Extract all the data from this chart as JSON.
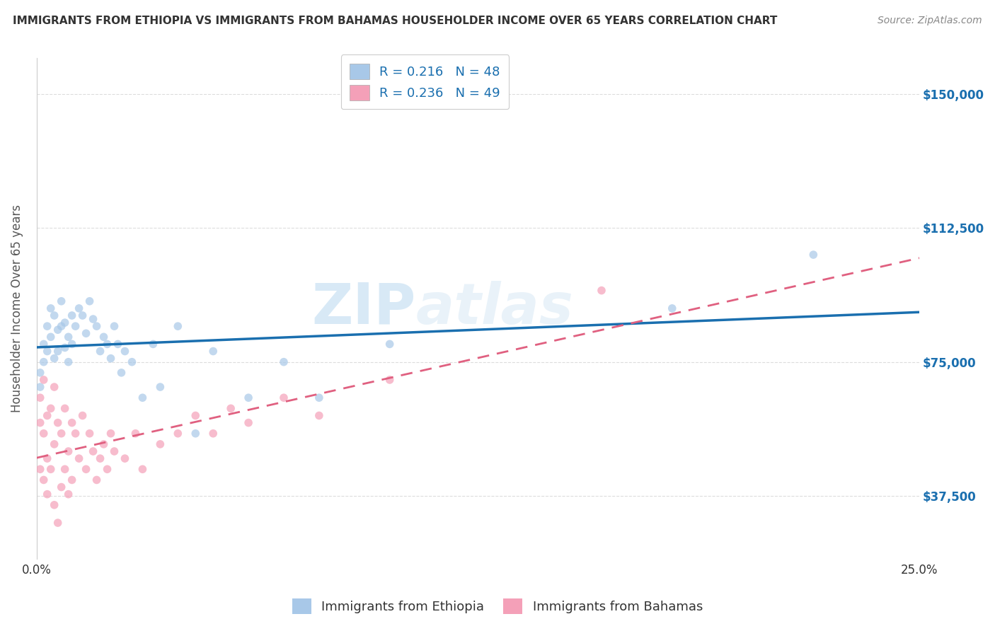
{
  "title": "IMMIGRANTS FROM ETHIOPIA VS IMMIGRANTS FROM BAHAMAS HOUSEHOLDER INCOME OVER 65 YEARS CORRELATION CHART",
  "source": "Source: ZipAtlas.com",
  "ylabel": "Householder Income Over 65 years",
  "xlim": [
    0.0,
    0.25
  ],
  "ylim": [
    20000,
    160000
  ],
  "yticks": [
    37500,
    75000,
    112500,
    150000
  ],
  "ytick_labels": [
    "$37,500",
    "$75,000",
    "$112,500",
    "$150,000"
  ],
  "xticks": [
    0.0,
    0.05,
    0.1,
    0.15,
    0.2,
    0.25
  ],
  "xtick_labels": [
    "0.0%",
    "",
    "",
    "",
    "",
    "25.0%"
  ],
  "ethiopia_color": "#a8c8e8",
  "bahamas_color": "#f4a0b8",
  "ethiopia_line_color": "#1a6faf",
  "bahamas_line_color": "#e06080",
  "R_ethiopia": 0.216,
  "N_ethiopia": 48,
  "R_bahamas": 0.236,
  "N_bahamas": 49,
  "ethiopia_x": [
    0.001,
    0.001,
    0.002,
    0.002,
    0.003,
    0.003,
    0.004,
    0.004,
    0.005,
    0.005,
    0.006,
    0.006,
    0.007,
    0.007,
    0.008,
    0.008,
    0.009,
    0.009,
    0.01,
    0.01,
    0.011,
    0.012,
    0.013,
    0.014,
    0.015,
    0.016,
    0.017,
    0.018,
    0.019,
    0.02,
    0.021,
    0.022,
    0.023,
    0.024,
    0.025,
    0.027,
    0.03,
    0.033,
    0.035,
    0.04,
    0.045,
    0.05,
    0.06,
    0.07,
    0.08,
    0.1,
    0.18,
    0.22
  ],
  "ethiopia_y": [
    72000,
    68000,
    80000,
    75000,
    85000,
    78000,
    90000,
    82000,
    88000,
    76000,
    84000,
    78000,
    92000,
    85000,
    79000,
    86000,
    82000,
    75000,
    88000,
    80000,
    85000,
    90000,
    88000,
    83000,
    92000,
    87000,
    85000,
    78000,
    82000,
    80000,
    76000,
    85000,
    80000,
    72000,
    78000,
    75000,
    65000,
    80000,
    68000,
    85000,
    55000,
    78000,
    65000,
    75000,
    65000,
    80000,
    90000,
    105000
  ],
  "bahamas_x": [
    0.001,
    0.001,
    0.001,
    0.002,
    0.002,
    0.002,
    0.003,
    0.003,
    0.003,
    0.004,
    0.004,
    0.005,
    0.005,
    0.005,
    0.006,
    0.006,
    0.007,
    0.007,
    0.008,
    0.008,
    0.009,
    0.009,
    0.01,
    0.01,
    0.011,
    0.012,
    0.013,
    0.014,
    0.015,
    0.016,
    0.017,
    0.018,
    0.019,
    0.02,
    0.021,
    0.022,
    0.025,
    0.028,
    0.03,
    0.035,
    0.04,
    0.045,
    0.05,
    0.055,
    0.06,
    0.07,
    0.08,
    0.1,
    0.16
  ],
  "bahamas_y": [
    65000,
    58000,
    45000,
    70000,
    55000,
    42000,
    60000,
    48000,
    38000,
    62000,
    45000,
    68000,
    52000,
    35000,
    58000,
    30000,
    55000,
    40000,
    62000,
    45000,
    50000,
    38000,
    58000,
    42000,
    55000,
    48000,
    60000,
    45000,
    55000,
    50000,
    42000,
    48000,
    52000,
    45000,
    55000,
    50000,
    48000,
    55000,
    45000,
    52000,
    55000,
    60000,
    55000,
    62000,
    58000,
    65000,
    60000,
    70000,
    95000
  ],
  "watermark_text": "ZIP",
  "watermark_text2": "atlas",
  "background_color": "#ffffff",
  "grid_color": "#dddddd",
  "title_color": "#333333",
  "axis_label_color": "#555555",
  "legend_text_color": "#1a6faf",
  "marker_size": 70,
  "marker_alpha": 0.7
}
